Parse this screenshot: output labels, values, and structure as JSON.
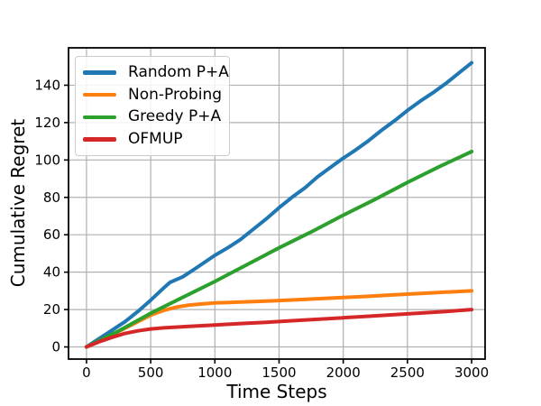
{
  "chart_data": {
    "type": "line",
    "title": "",
    "xlabel": "Time Steps",
    "ylabel": "Cumulative Regret",
    "xlim": [
      -140,
      3105
    ],
    "ylim": [
      -6.5,
      160
    ],
    "xticks": [
      0,
      500,
      1000,
      1500,
      2000,
      2500,
      3000
    ],
    "yticks": [
      0,
      20,
      40,
      60,
      80,
      100,
      120,
      140
    ],
    "grid": true,
    "grid_color": "#b0b0b0",
    "spine_color": "#000000",
    "tick_label_color": "#000000",
    "axis_label_color": "#000000",
    "legend_position": "upper-left",
    "series": [
      {
        "name": "Random P+A",
        "color": "#1f77b4",
        "points": [
          [
            0,
            0
          ],
          [
            100,
            4.5
          ],
          [
            200,
            9
          ],
          [
            300,
            13.5
          ],
          [
            400,
            19
          ],
          [
            500,
            25
          ],
          [
            600,
            31.5
          ],
          [
            650,
            34.5
          ],
          [
            750,
            37.5
          ],
          [
            850,
            42
          ],
          [
            1000,
            49
          ],
          [
            1100,
            53
          ],
          [
            1200,
            57.5
          ],
          [
            1300,
            63
          ],
          [
            1400,
            68.5
          ],
          [
            1500,
            74.5
          ],
          [
            1600,
            80
          ],
          [
            1700,
            85
          ],
          [
            1800,
            91
          ],
          [
            1900,
            96
          ],
          [
            2000,
            101
          ],
          [
            2100,
            105.5
          ],
          [
            2200,
            110.5
          ],
          [
            2300,
            116
          ],
          [
            2400,
            121
          ],
          [
            2500,
            126.5
          ],
          [
            2600,
            131.5
          ],
          [
            2700,
            136
          ],
          [
            2800,
            141
          ],
          [
            2900,
            146.5
          ],
          [
            3000,
            152
          ]
        ]
      },
      {
        "name": "Non-Probing",
        "color": "#ff7f0e",
        "points": [
          [
            0,
            0
          ],
          [
            100,
            3
          ],
          [
            200,
            6.5
          ],
          [
            300,
            10
          ],
          [
            400,
            13.5
          ],
          [
            500,
            17
          ],
          [
            600,
            19.5
          ],
          [
            700,
            21.3
          ],
          [
            800,
            22.4
          ],
          [
            900,
            23
          ],
          [
            1000,
            23.5
          ],
          [
            1200,
            24
          ],
          [
            1400,
            24.5
          ],
          [
            1600,
            25.1
          ],
          [
            1800,
            25.8
          ],
          [
            2000,
            26.4
          ],
          [
            2200,
            27.1
          ],
          [
            2400,
            27.9
          ],
          [
            2600,
            28.6
          ],
          [
            2800,
            29.3
          ],
          [
            3000,
            30
          ]
        ]
      },
      {
        "name": "Greedy P+A",
        "color": "#2ca02c",
        "points": [
          [
            0,
            0
          ],
          [
            250,
            8.5
          ],
          [
            500,
            18
          ],
          [
            750,
            26.5
          ],
          [
            1000,
            35
          ],
          [
            1250,
            44
          ],
          [
            1500,
            53
          ],
          [
            1750,
            61.5
          ],
          [
            2000,
            70.5
          ],
          [
            2250,
            79
          ],
          [
            2500,
            88
          ],
          [
            2750,
            96.5
          ],
          [
            3000,
            104.5
          ]
        ]
      },
      {
        "name": "OFMUP",
        "color": "#d62728",
        "points": [
          [
            0,
            0
          ],
          [
            100,
            2.8
          ],
          [
            200,
            5.2
          ],
          [
            300,
            7.2
          ],
          [
            400,
            8.6
          ],
          [
            500,
            9.6
          ],
          [
            600,
            10.2
          ],
          [
            800,
            11
          ],
          [
            1000,
            11.7
          ],
          [
            1200,
            12.5
          ],
          [
            1400,
            13.2
          ],
          [
            1600,
            14
          ],
          [
            1800,
            14.8
          ],
          [
            2000,
            15.6
          ],
          [
            2200,
            16.4
          ],
          [
            2400,
            17.3
          ],
          [
            2600,
            18.1
          ],
          [
            2800,
            19
          ],
          [
            3000,
            20
          ]
        ]
      }
    ]
  }
}
